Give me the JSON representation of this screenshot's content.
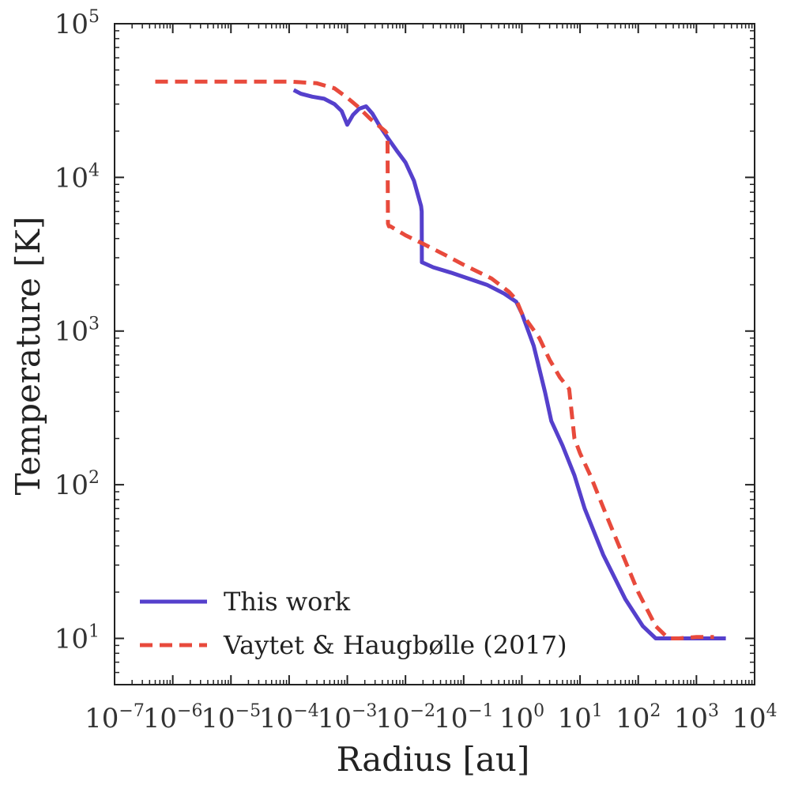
{
  "chart_data": {
    "type": "line",
    "xscale": "log",
    "yscale": "log",
    "xlabel": "Radius [au]",
    "ylabel": "Temperature [K]",
    "xlim": [
      1e-07,
      10000
    ],
    "ylim": [
      5,
      100000
    ],
    "x_ticks": [
      {
        "base": "10",
        "exp": "−7",
        "value": 1e-07
      },
      {
        "base": "10",
        "exp": "−6",
        "value": 1e-06
      },
      {
        "base": "10",
        "exp": "−5",
        "value": 1e-05
      },
      {
        "base": "10",
        "exp": "−4",
        "value": 0.0001
      },
      {
        "base": "10",
        "exp": "−3",
        "value": 0.001
      },
      {
        "base": "10",
        "exp": "−2",
        "value": 0.01
      },
      {
        "base": "10",
        "exp": "−1",
        "value": 0.1
      },
      {
        "base": "10",
        "exp": "0",
        "value": 1
      },
      {
        "base": "10",
        "exp": "1",
        "value": 10
      },
      {
        "base": "10",
        "exp": "2",
        "value": 100
      },
      {
        "base": "10",
        "exp": "3",
        "value": 1000
      },
      {
        "base": "10",
        "exp": "4",
        "value": 10000
      }
    ],
    "y_ticks": [
      {
        "base": "10",
        "exp": "1",
        "value": 10
      },
      {
        "base": "10",
        "exp": "2",
        "value": 100
      },
      {
        "base": "10",
        "exp": "3",
        "value": 1000
      },
      {
        "base": "10",
        "exp": "4",
        "value": 10000
      },
      {
        "base": "10",
        "exp": "5",
        "value": 100000
      }
    ],
    "legend_position": "bottom-left",
    "series": [
      {
        "name": "This work",
        "color": "#5540cc",
        "style": "solid",
        "x": [
          0.00012,
          0.00016,
          0.00025,
          0.0004,
          0.0006,
          0.0008,
          0.001,
          0.00125,
          0.0016,
          0.0021,
          0.0027,
          0.0035,
          0.005,
          0.007,
          0.01,
          0.014,
          0.0185,
          0.019,
          0.0191,
          0.0193,
          0.03,
          0.06,
          0.12,
          0.25,
          0.5,
          0.8,
          1.0,
          1.6,
          2.5,
          3.2,
          5,
          8,
          12,
          25,
          60,
          120,
          200,
          300,
          1000,
          3200
        ],
        "y": [
          37000,
          35000,
          33500,
          32500,
          30000,
          27000,
          22000,
          25500,
          28000,
          29000,
          26000,
          22000,
          18000,
          15000,
          12500,
          9500,
          6500,
          6000,
          2800,
          2800,
          2600,
          2400,
          2200,
          2000,
          1750,
          1550,
          1300,
          800,
          400,
          260,
          180,
          115,
          70,
          35,
          18,
          12,
          10,
          10,
          10,
          10
        ]
      },
      {
        "name": "Vaytet & Haugbølle (2017)",
        "color": "#e84a3c",
        "style": "dashed",
        "x": [
          5e-07,
          1e-06,
          1e-05,
          0.0001,
          0.0003,
          0.0006,
          0.001,
          0.0015,
          0.0025,
          0.0045,
          0.0049,
          0.005,
          0.0052,
          0.0055,
          0.01,
          0.02,
          0.05,
          0.1,
          0.3,
          0.6,
          0.8,
          1.0,
          2,
          3,
          4.5,
          6.5,
          8,
          10,
          15,
          30,
          100,
          200,
          330,
          500,
          1000,
          2000
        ],
        "y": [
          42000,
          42000,
          42000,
          42000,
          41000,
          38000,
          33000,
          29000,
          24000,
          20000,
          19000,
          5000,
          4800,
          4800,
          4200,
          3700,
          3100,
          2700,
          2200,
          1800,
          1600,
          1300,
          900,
          650,
          500,
          420,
          200,
          160,
          115,
          60,
          20,
          12,
          10,
          10,
          10.2,
          10.2
        ]
      }
    ]
  }
}
